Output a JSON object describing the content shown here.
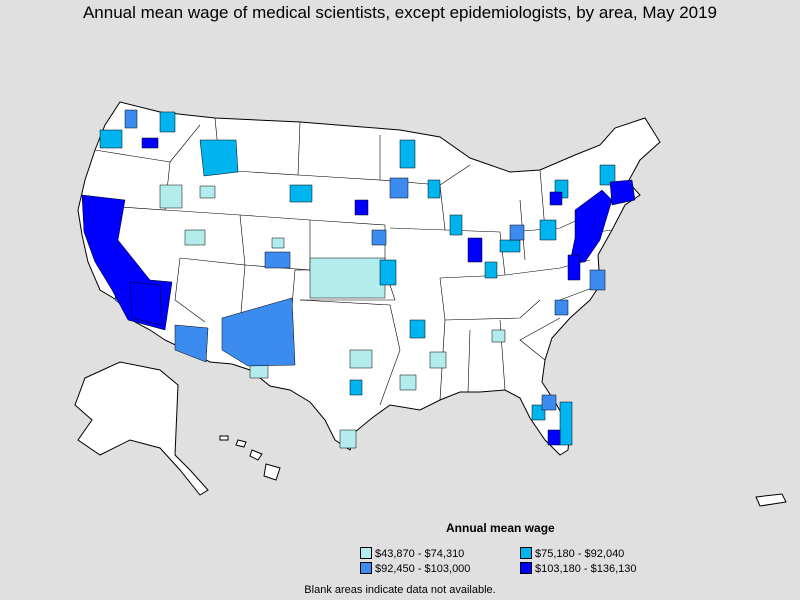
{
  "title": "Annual mean wage of medical scientists, except epidemiologists, by area, May 2019",
  "legend": {
    "title": "Annual mean wage",
    "items": [
      {
        "label": "$43,870 - $74,310",
        "color": "#b2ecec"
      },
      {
        "label": "$75,180 - $92,040",
        "color": "#00b4f0"
      },
      {
        "label": "$92,450 - $103,000",
        "color": "#3c8cf0"
      },
      {
        "label": "$103,180 - $136,130",
        "color": "#0000ff"
      }
    ]
  },
  "footnote": "Blank areas indicate data not available.",
  "colors": {
    "background": "#e0e0e0",
    "land": "#ffffff",
    "border": "#000000"
  }
}
